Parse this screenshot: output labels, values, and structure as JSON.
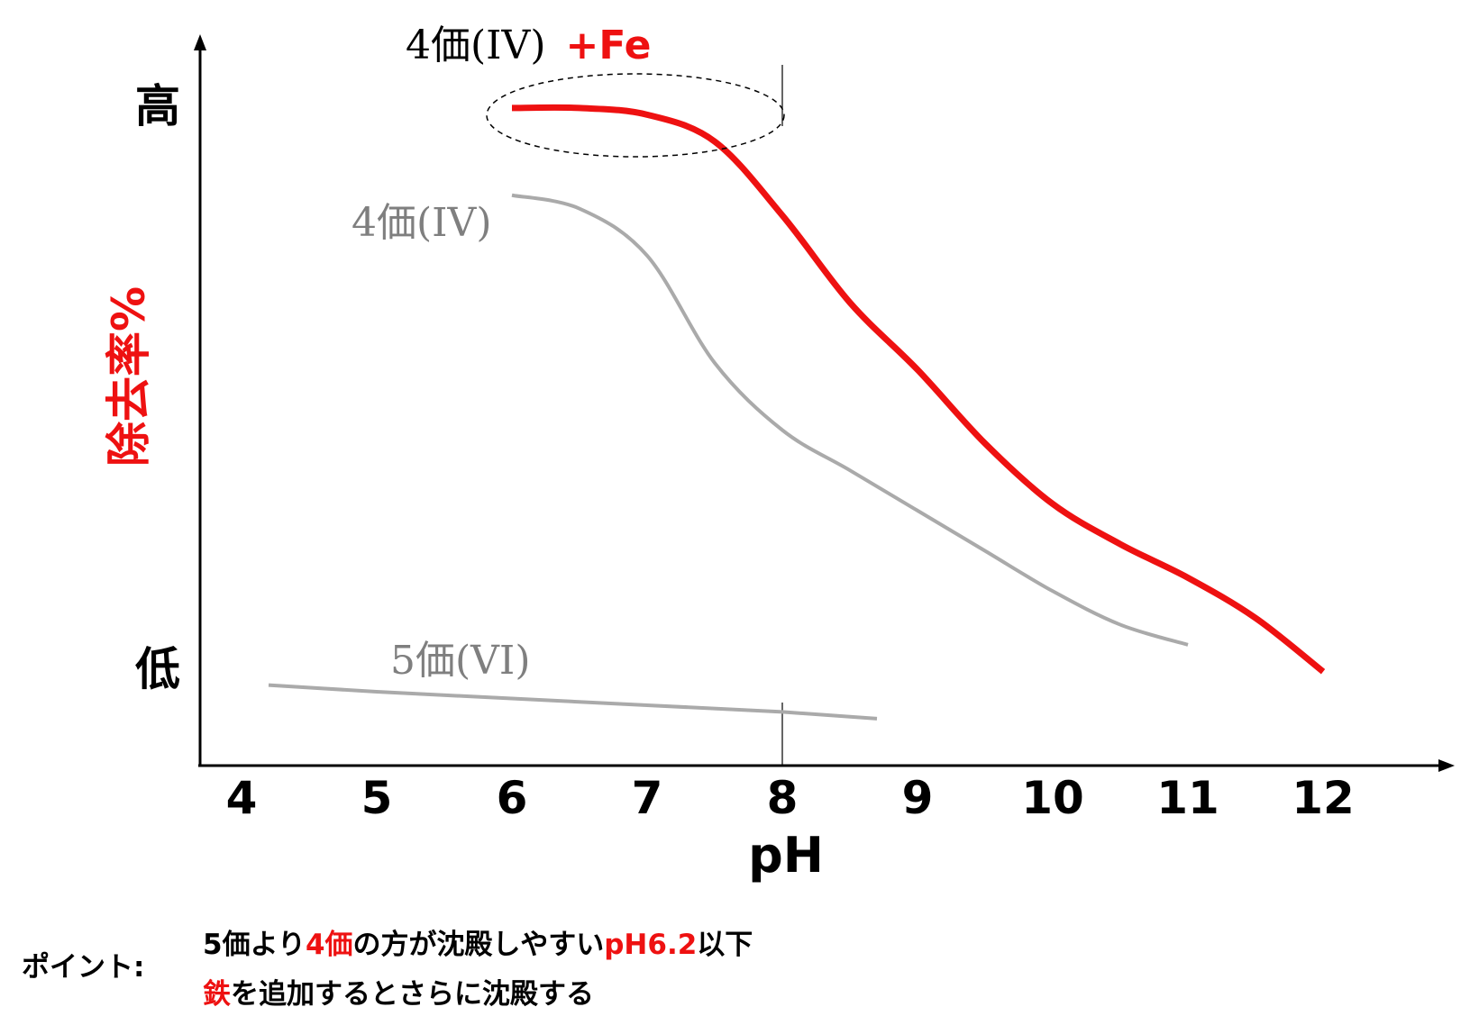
{
  "chart_data": {
    "type": "line",
    "xlabel": "pH",
    "ylabel": "除去率%",
    "y_levels": {
      "high": "高",
      "low": "低"
    },
    "x_ticks": [
      "4",
      "5",
      "6",
      "7",
      "8",
      "9",
      "10",
      "11",
      "12"
    ],
    "xlim": [
      4,
      12.5
    ],
    "ylim": [
      0,
      100
    ],
    "series": [
      {
        "name_black": "4価(IV)",
        "name_red": "+Fe",
        "color": "#ee1111",
        "x": [
          6.0,
          6.5,
          7.0,
          7.5,
          8.0,
          8.5,
          9.0,
          9.5,
          10.0,
          10.5,
          11.0,
          11.5,
          12.0
        ],
        "y": [
          98,
          98,
          97,
          93,
          82,
          69,
          59,
          48,
          39,
          33,
          28,
          22,
          14
        ]
      },
      {
        "name": "4価(IV)",
        "color": "#aaaaaa",
        "x": [
          6.0,
          6.5,
          7.0,
          7.5,
          8.0,
          8.5,
          9.0,
          9.5,
          10.0,
          10.5,
          11.0
        ],
        "y": [
          85,
          83,
          76,
          60,
          50,
          44,
          38,
          32,
          26,
          21,
          18
        ]
      },
      {
        "name": "5価(VI)",
        "color": "#aaaaaa",
        "x": [
          4.2,
          5.0,
          6.0,
          7.0,
          8.0,
          8.7
        ],
        "y": [
          12,
          11,
          10,
          9,
          8,
          7
        ]
      }
    ],
    "reference_lines_x": [
      8
    ]
  },
  "note": {
    "label": "ポイント:",
    "line1_a": "5価より",
    "line1_b": "4価",
    "line1_c": "の方が沈殿しやすい",
    "line1_d": "pH6.2",
    "line1_e": "以下",
    "line2_a": "鉄",
    "line2_b": "を追加するとさらに沈殿する"
  },
  "colors": {
    "accent": "#ee1111",
    "grey_line": "#aaaaaa",
    "axis": "#000000"
  }
}
